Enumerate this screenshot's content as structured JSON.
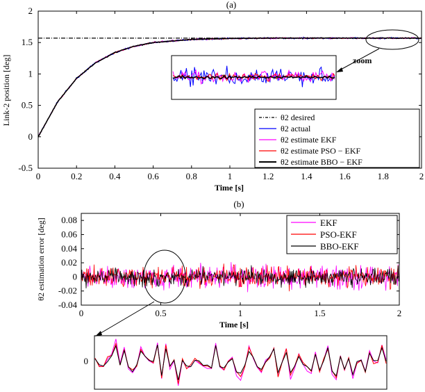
{
  "chart_data": [
    {
      "type": "line",
      "panel_label": "(a)",
      "xlabel": "Time [s]",
      "ylabel": "Link-2 position [deg]",
      "xlim": [
        0,
        2
      ],
      "ylim": [
        -0.5,
        2
      ],
      "xticks": [
        "0",
        "0.2",
        "0.4",
        "0.6",
        "0.8",
        "1",
        "1.2",
        "1.4",
        "1.6",
        "1.8",
        "2"
      ],
      "yticks": [
        "-0.5",
        "0",
        "0.5",
        "1",
        "1.5",
        "2"
      ],
      "grid": false,
      "legend_position": "bottom-right",
      "series": [
        {
          "name": "θ2 desired",
          "color": "#000000",
          "style": "dash-dot",
          "x": [
            0,
            2
          ],
          "y": [
            1.57,
            1.57
          ]
        },
        {
          "name": "θ2 actual",
          "color": "#0000ff",
          "style": "solid",
          "x": [
            0,
            0.1,
            0.2,
            0.3,
            0.4,
            0.5,
            0.6,
            0.8,
            1.0,
            1.2,
            1.5,
            2.0
          ],
          "y": [
            0,
            0.55,
            0.93,
            1.18,
            1.34,
            1.44,
            1.5,
            1.55,
            1.565,
            1.57,
            1.57,
            1.57
          ]
        },
        {
          "name": "θ2 estimate EKF",
          "color": "#ff00ff",
          "style": "solid",
          "x": [
            0,
            0.1,
            0.2,
            0.3,
            0.4,
            0.5,
            0.6,
            0.8,
            1.0,
            1.2,
            1.5,
            2.0
          ],
          "y": [
            0,
            0.55,
            0.93,
            1.18,
            1.34,
            1.44,
            1.5,
            1.55,
            1.565,
            1.57,
            1.57,
            1.57
          ]
        },
        {
          "name": "θ2 estimate PSO − EKF",
          "color": "#ff0000",
          "style": "solid",
          "x": [
            0,
            0.1,
            0.2,
            0.3,
            0.4,
            0.5,
            0.6,
            0.8,
            1.0,
            1.2,
            1.5,
            2.0
          ],
          "y": [
            0,
            0.55,
            0.93,
            1.18,
            1.34,
            1.44,
            1.5,
            1.55,
            1.565,
            1.57,
            1.57,
            1.57
          ]
        },
        {
          "name": "θ2 estimate BBO − EKF",
          "color": "#000000",
          "style": "solid-bold",
          "x": [
            0,
            0.1,
            0.2,
            0.3,
            0.4,
            0.5,
            0.6,
            0.8,
            1.0,
            1.2,
            1.5,
            2.0
          ],
          "y": [
            0,
            0.55,
            0.93,
            1.18,
            1.34,
            1.44,
            1.5,
            1.55,
            1.565,
            1.57,
            1.57,
            1.57
          ]
        }
      ],
      "annotations": [
        "zoom"
      ]
    },
    {
      "type": "line",
      "panel_label": "(b)",
      "xlabel": "Time [s]",
      "ylabel": "θ2 estimation error [deg]",
      "xlim": [
        0,
        2
      ],
      "ylim": [
        -0.04,
        0.09
      ],
      "xticks": [
        "0",
        "0.5",
        "1",
        "1.5",
        "2"
      ],
      "yticks": [
        "-0.04",
        "-0.02",
        "0",
        "0.02",
        "0.04",
        "0.06",
        "0.08"
      ],
      "grid": false,
      "legend_position": "top-right",
      "series": [
        {
          "name": "EKF",
          "color": "#ff00ff",
          "noise_amplitude": 0.03
        },
        {
          "name": "PSO-EKF",
          "color": "#ff0000",
          "noise_amplitude": 0.025
        },
        {
          "name": "BBO-EKF",
          "color": "#000000",
          "noise_amplitude": 0.022
        }
      ],
      "zoom_inset_ytick": "0"
    }
  ]
}
